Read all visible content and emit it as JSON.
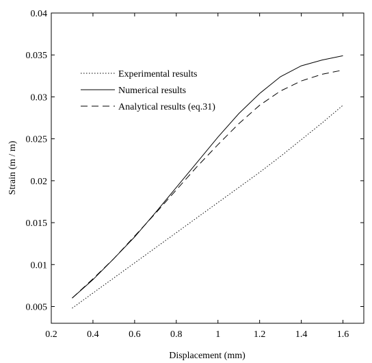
{
  "chart_data": {
    "type": "line",
    "title": "",
    "xlabel": "Displacement (mm)",
    "ylabel": "Strain (m / m)",
    "xlim": [
      0.2,
      1.7
    ],
    "ylim": [
      0.003,
      0.04
    ],
    "xticks": [
      0.2,
      0.4,
      0.6,
      0.8,
      1,
      1.2,
      1.4,
      1.6
    ],
    "yticks": [
      0.005,
      0.01,
      0.015,
      0.02,
      0.025,
      0.03,
      0.035,
      0.04
    ],
    "grid": false,
    "legend_position": "upper-left",
    "series": [
      {
        "name": "Experimental results",
        "style": "dotted",
        "color": "#000000",
        "x": [
          0.3,
          0.4,
          0.5,
          0.6,
          0.7,
          0.8,
          0.9,
          1.0,
          1.1,
          1.2,
          1.3,
          1.4,
          1.5,
          1.6
        ],
        "y": [
          0.0048,
          0.0066,
          0.0084,
          0.0102,
          0.012,
          0.0138,
          0.0156,
          0.0174,
          0.0192,
          0.021,
          0.0229,
          0.0249,
          0.0269,
          0.029
        ]
      },
      {
        "name": "Numerical results",
        "style": "solid",
        "color": "#000000",
        "x": [
          0.3,
          0.4,
          0.5,
          0.6,
          0.7,
          0.8,
          0.9,
          1.0,
          1.1,
          1.2,
          1.3,
          1.4,
          1.5,
          1.6
        ],
        "y": [
          0.006,
          0.0082,
          0.0107,
          0.0133,
          0.0162,
          0.0192,
          0.0222,
          0.0252,
          0.028,
          0.0304,
          0.0324,
          0.0337,
          0.0344,
          0.0349
        ]
      },
      {
        "name": "Analytical results (eq.31)",
        "style": "dashed",
        "color": "#000000",
        "x": [
          0.3,
          0.4,
          0.5,
          0.6,
          0.7,
          0.8,
          0.9,
          1.0,
          1.1,
          1.2,
          1.3,
          1.4,
          1.5,
          1.6
        ],
        "y": [
          0.006,
          0.0083,
          0.0107,
          0.0134,
          0.0161,
          0.0189,
          0.0217,
          0.0243,
          0.0268,
          0.029,
          0.0307,
          0.0319,
          0.0327,
          0.0332
        ]
      }
    ]
  }
}
